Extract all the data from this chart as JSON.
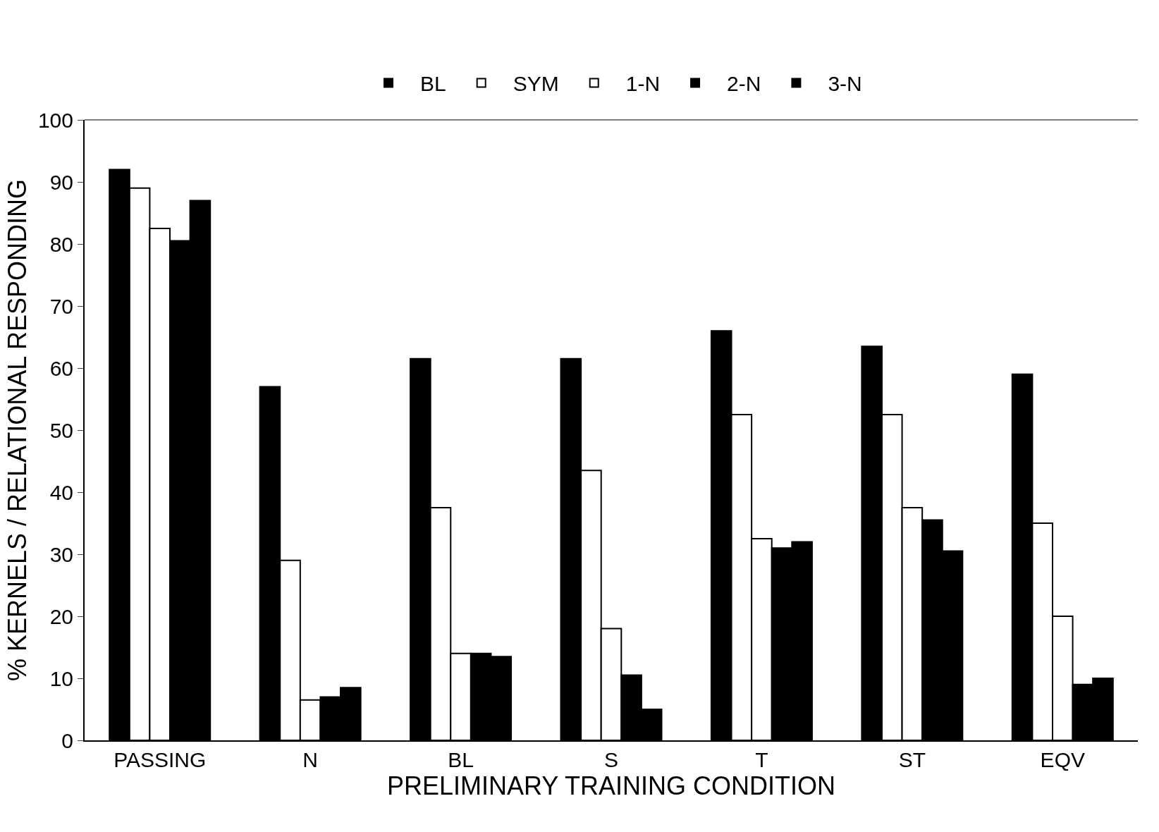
{
  "chart_data": {
    "type": "bar",
    "xlabel": "PRELIMINARY TRAINING CONDITION",
    "ylabel": "% KERNELS / RELATIONAL RESPONDING",
    "categories": [
      "PASSING",
      "N",
      "BL",
      "S",
      "T",
      "ST",
      "EQV"
    ],
    "series": [
      {
        "name": "BL",
        "color": "#000000",
        "values": [
          92,
          57,
          61.5,
          61.5,
          66,
          63.5,
          59
        ]
      },
      {
        "name": "SYM",
        "color": "#ffffff",
        "values": [
          89,
          29,
          37.5,
          43.5,
          52.5,
          52.5,
          35
        ]
      },
      {
        "name": "1-N",
        "color": "#ffffff",
        "values": [
          82.5,
          6.5,
          14,
          18,
          32.5,
          37.5,
          20
        ]
      },
      {
        "name": "2-N",
        "color": "#000000",
        "values": [
          80.5,
          7,
          14,
          10.5,
          31,
          35.5,
          9
        ]
      },
      {
        "name": "3-N",
        "color": "#000000",
        "values": [
          87,
          8.5,
          13.5,
          5,
          32,
          30.5,
          10
        ]
      }
    ],
    "ylim": [
      0,
      100
    ],
    "yticks": [
      0,
      10,
      20,
      30,
      40,
      50,
      60,
      70,
      80,
      90,
      100
    ],
    "grid": false,
    "legend": "top"
  }
}
